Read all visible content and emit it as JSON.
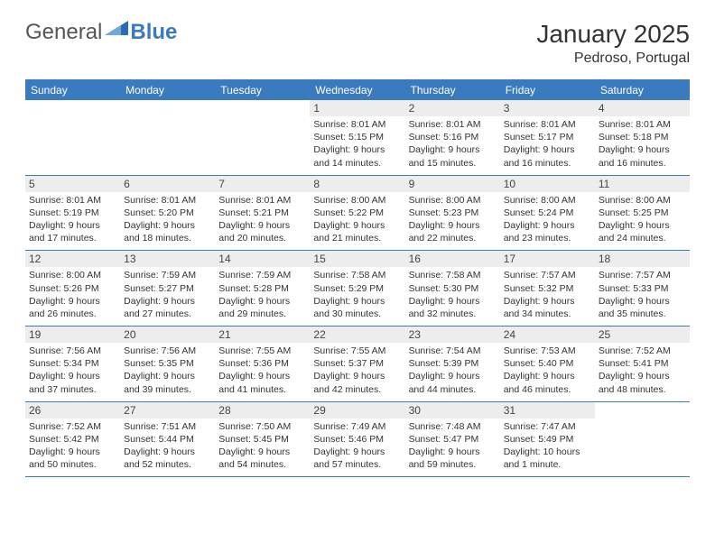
{
  "logo": {
    "general": "General",
    "blue": "Blue"
  },
  "title": "January 2025",
  "location": "Pedroso, Portugal",
  "colors": {
    "brand": "#3a7bbf",
    "dow_bg": "#3a7bbf",
    "dow_text": "#ffffff",
    "daynum_bg": "#ededed",
    "row_border": "#3a7bbf",
    "text": "#333333",
    "background": "#ffffff"
  },
  "typography": {
    "title_fontsize": 28,
    "location_fontsize": 16,
    "dow_fontsize": 12,
    "daynum_fontsize": 12,
    "body_fontsize": 10.5
  },
  "layout": {
    "columns": 7,
    "rows": 5,
    "first_day_column_index": 3
  },
  "days_of_week": [
    "Sunday",
    "Monday",
    "Tuesday",
    "Wednesday",
    "Thursday",
    "Friday",
    "Saturday"
  ],
  "days": [
    {
      "num": 1,
      "sunrise": "8:01 AM",
      "sunset": "5:15 PM",
      "daylight": "9 hours and 14 minutes."
    },
    {
      "num": 2,
      "sunrise": "8:01 AM",
      "sunset": "5:16 PM",
      "daylight": "9 hours and 15 minutes."
    },
    {
      "num": 3,
      "sunrise": "8:01 AM",
      "sunset": "5:17 PM",
      "daylight": "9 hours and 16 minutes."
    },
    {
      "num": 4,
      "sunrise": "8:01 AM",
      "sunset": "5:18 PM",
      "daylight": "9 hours and 16 minutes."
    },
    {
      "num": 5,
      "sunrise": "8:01 AM",
      "sunset": "5:19 PM",
      "daylight": "9 hours and 17 minutes."
    },
    {
      "num": 6,
      "sunrise": "8:01 AM",
      "sunset": "5:20 PM",
      "daylight": "9 hours and 18 minutes."
    },
    {
      "num": 7,
      "sunrise": "8:01 AM",
      "sunset": "5:21 PM",
      "daylight": "9 hours and 20 minutes."
    },
    {
      "num": 8,
      "sunrise": "8:00 AM",
      "sunset": "5:22 PM",
      "daylight": "9 hours and 21 minutes."
    },
    {
      "num": 9,
      "sunrise": "8:00 AM",
      "sunset": "5:23 PM",
      "daylight": "9 hours and 22 minutes."
    },
    {
      "num": 10,
      "sunrise": "8:00 AM",
      "sunset": "5:24 PM",
      "daylight": "9 hours and 23 minutes."
    },
    {
      "num": 11,
      "sunrise": "8:00 AM",
      "sunset": "5:25 PM",
      "daylight": "9 hours and 24 minutes."
    },
    {
      "num": 12,
      "sunrise": "8:00 AM",
      "sunset": "5:26 PM",
      "daylight": "9 hours and 26 minutes."
    },
    {
      "num": 13,
      "sunrise": "7:59 AM",
      "sunset": "5:27 PM",
      "daylight": "9 hours and 27 minutes."
    },
    {
      "num": 14,
      "sunrise": "7:59 AM",
      "sunset": "5:28 PM",
      "daylight": "9 hours and 29 minutes."
    },
    {
      "num": 15,
      "sunrise": "7:58 AM",
      "sunset": "5:29 PM",
      "daylight": "9 hours and 30 minutes."
    },
    {
      "num": 16,
      "sunrise": "7:58 AM",
      "sunset": "5:30 PM",
      "daylight": "9 hours and 32 minutes."
    },
    {
      "num": 17,
      "sunrise": "7:57 AM",
      "sunset": "5:32 PM",
      "daylight": "9 hours and 34 minutes."
    },
    {
      "num": 18,
      "sunrise": "7:57 AM",
      "sunset": "5:33 PM",
      "daylight": "9 hours and 35 minutes."
    },
    {
      "num": 19,
      "sunrise": "7:56 AM",
      "sunset": "5:34 PM",
      "daylight": "9 hours and 37 minutes."
    },
    {
      "num": 20,
      "sunrise": "7:56 AM",
      "sunset": "5:35 PM",
      "daylight": "9 hours and 39 minutes."
    },
    {
      "num": 21,
      "sunrise": "7:55 AM",
      "sunset": "5:36 PM",
      "daylight": "9 hours and 41 minutes."
    },
    {
      "num": 22,
      "sunrise": "7:55 AM",
      "sunset": "5:37 PM",
      "daylight": "9 hours and 42 minutes."
    },
    {
      "num": 23,
      "sunrise": "7:54 AM",
      "sunset": "5:39 PM",
      "daylight": "9 hours and 44 minutes."
    },
    {
      "num": 24,
      "sunrise": "7:53 AM",
      "sunset": "5:40 PM",
      "daylight": "9 hours and 46 minutes."
    },
    {
      "num": 25,
      "sunrise": "7:52 AM",
      "sunset": "5:41 PM",
      "daylight": "9 hours and 48 minutes."
    },
    {
      "num": 26,
      "sunrise": "7:52 AM",
      "sunset": "5:42 PM",
      "daylight": "9 hours and 50 minutes."
    },
    {
      "num": 27,
      "sunrise": "7:51 AM",
      "sunset": "5:44 PM",
      "daylight": "9 hours and 52 minutes."
    },
    {
      "num": 28,
      "sunrise": "7:50 AM",
      "sunset": "5:45 PM",
      "daylight": "9 hours and 54 minutes."
    },
    {
      "num": 29,
      "sunrise": "7:49 AM",
      "sunset": "5:46 PM",
      "daylight": "9 hours and 57 minutes."
    },
    {
      "num": 30,
      "sunrise": "7:48 AM",
      "sunset": "5:47 PM",
      "daylight": "9 hours and 59 minutes."
    },
    {
      "num": 31,
      "sunrise": "7:47 AM",
      "sunset": "5:49 PM",
      "daylight": "10 hours and 1 minute."
    }
  ],
  "labels": {
    "sunrise_prefix": "Sunrise: ",
    "sunset_prefix": "Sunset: ",
    "daylight_prefix": "Daylight: "
  }
}
